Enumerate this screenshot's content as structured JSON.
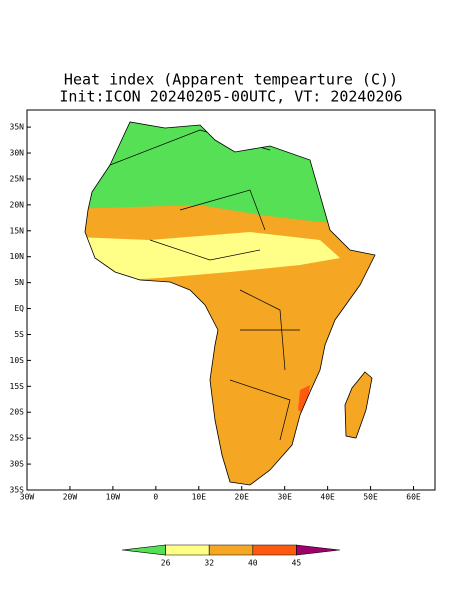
{
  "chart_data": {
    "type": "map",
    "title": "Heat index (Apparent tempearture (C))",
    "subtitle": "Init:ICON 20240205-00UTC, VT: 20240206",
    "xlim": [
      -30,
      65
    ],
    "ylim": [
      -35,
      38.3
    ],
    "xticks": [
      {
        "value": -30,
        "label": "30W"
      },
      {
        "value": -20,
        "label": "20W"
      },
      {
        "value": -10,
        "label": "10W"
      },
      0,
      {
        "value": 10,
        "label": "10E"
      },
      {
        "value": 20,
        "label": "20E"
      },
      {
        "value": 30,
        "label": "30E"
      },
      {
        "value": 40,
        "label": "40E"
      },
      {
        "value": 50,
        "label": "50E"
      },
      {
        "value": 60,
        "label": "60E"
      }
    ],
    "yticks": [
      {
        "value": 35,
        "label": "35N"
      },
      {
        "value": 30,
        "label": "30N"
      },
      {
        "value": 25,
        "label": "25N"
      },
      {
        "value": 20,
        "label": "20N"
      },
      {
        "value": 15,
        "label": "15N"
      },
      {
        "value": 10,
        "label": "10N"
      },
      {
        "value": 5,
        "label": "5N"
      },
      {
        "value": 0,
        "label": "EQ"
      },
      {
        "value": -5,
        "label": "5S"
      },
      {
        "value": -10,
        "label": "10S"
      },
      {
        "value": -15,
        "label": "15S"
      },
      {
        "value": -20,
        "label": "20S"
      },
      {
        "value": -25,
        "label": "25S"
      },
      {
        "value": -30,
        "label": "30S"
      },
      {
        "value": -35,
        "label": "35S"
      }
    ],
    "levels": [
      26,
      32,
      40,
      45
    ],
    "colors": [
      "#55e055",
      "#ffff88",
      "#f5a623",
      "#ff5a10",
      "#a0006a"
    ]
  }
}
